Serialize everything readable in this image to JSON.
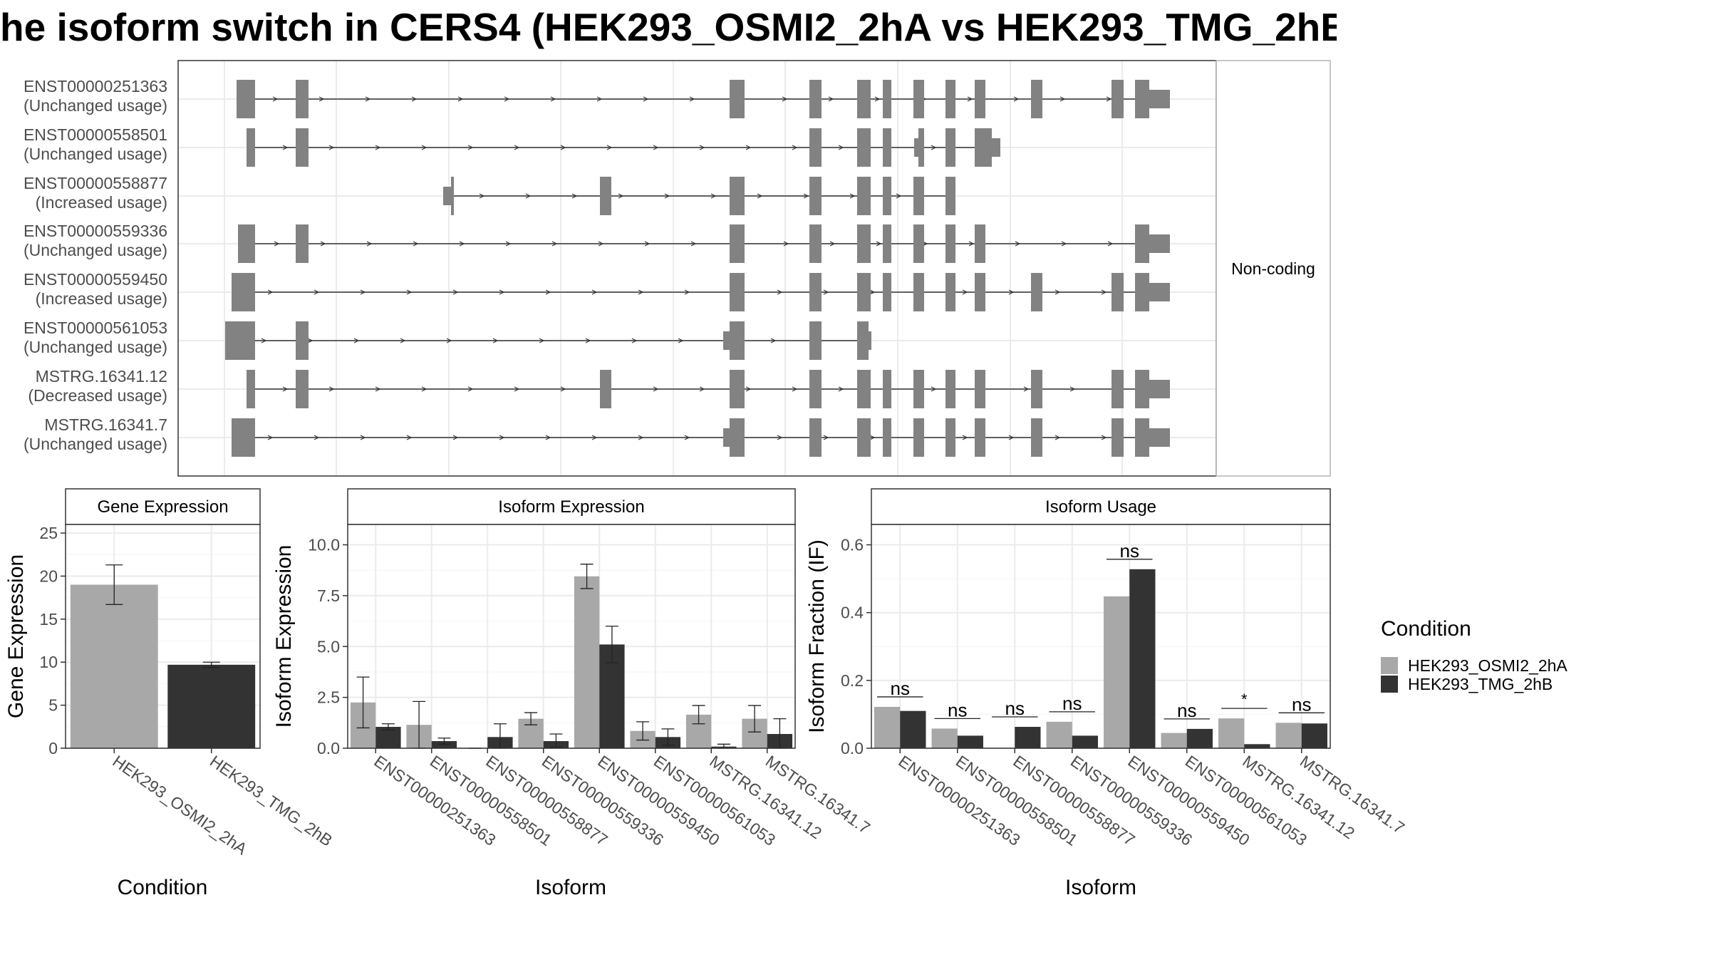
{
  "title": "he isoform switch in CERS4 (HEK293_OSMI2_2hA vs HEK293_TMG_2hB",
  "colors": {
    "light": "#a8a8a8",
    "dark": "#333333",
    "exon": "#828282",
    "grid": "#ebebeb",
    "border": "#333333"
  },
  "structure_panel": {
    "facet_label": "Non-coding",
    "isoforms": [
      {
        "id": "ENST00000251363",
        "usage": "(Unchanged usage)"
      },
      {
        "id": "ENST00000558501",
        "usage": "(Unchanged usage)"
      },
      {
        "id": "ENST00000558877",
        "usage": "(Increased usage)"
      },
      {
        "id": "ENST00000559336",
        "usage": "(Unchanged usage)"
      },
      {
        "id": "ENST00000559450",
        "usage": "(Increased usage)"
      },
      {
        "id": "ENST00000561053",
        "usage": "(Unchanged usage)"
      },
      {
        "id": "MSTRG.16341.12",
        "usage": "(Decreased usage)"
      },
      {
        "id": "MSTRG.16341.7",
        "usage": "(Unchanged usage)"
      }
    ]
  },
  "legend": {
    "title": "Condition",
    "items": [
      {
        "label": "HEK293_OSMI2_2hA",
        "color": "#a8a8a8"
      },
      {
        "label": "HEK293_TMG_2hB",
        "color": "#333333"
      }
    ]
  },
  "chart_data": [
    {
      "type": "bar",
      "title": "Gene Expression",
      "xlabel": "Condition",
      "ylabel": "Gene Expression",
      "ylim": [
        0,
        26
      ],
      "yticks": [
        0,
        5,
        10,
        15,
        20,
        25
      ],
      "ytick_labels": [
        "0",
        "5",
        "10",
        "15",
        "20",
        "25"
      ],
      "categories": [
        "HEK293_OSMI2_2hA",
        "HEK293_TMG_2hB"
      ],
      "values": [
        19.0,
        9.7
      ],
      "error_low": [
        16.7,
        9.4
      ],
      "error_high": [
        21.3,
        10.0
      ]
    },
    {
      "type": "bar",
      "title": "Isoform Expression",
      "xlabel": "Isoform",
      "ylabel": "Isoform Expression",
      "ylim": [
        0,
        11
      ],
      "yticks": [
        0,
        2.5,
        5,
        7.5,
        10
      ],
      "ytick_labels": [
        "0.0",
        "2.5",
        "5.0",
        "7.5",
        "10.0"
      ],
      "categories": [
        "ENST00000251363",
        "ENST00000558501",
        "ENST00000558877",
        "ENST00000559336",
        "ENST00000559450",
        "ENST00000561053",
        "MSTRG.16341.12",
        "MSTRG.16341.7"
      ],
      "series": [
        {
          "name": "HEK293_OSMI2_2hA",
          "values": [
            2.25,
            1.15,
            0.0,
            1.45,
            8.45,
            0.85,
            1.65,
            1.45
          ],
          "error_low": [
            1.0,
            0.0,
            0.0,
            1.15,
            7.85,
            0.4,
            1.2,
            0.8
          ],
          "error_high": [
            3.5,
            2.3,
            0.0,
            1.75,
            9.05,
            1.3,
            2.1,
            2.1
          ]
        },
        {
          "name": "HEK293_TMG_2hB",
          "values": [
            1.05,
            0.35,
            0.55,
            0.35,
            5.1,
            0.55,
            0.08,
            0.7
          ],
          "error_low": [
            0.9,
            0.2,
            0.0,
            0.05,
            4.2,
            0.15,
            0.0,
            0.0
          ],
          "error_high": [
            1.2,
            0.5,
            1.2,
            0.7,
            6.0,
            0.95,
            0.2,
            1.45
          ]
        }
      ]
    },
    {
      "type": "bar",
      "title": "Isoform Usage",
      "xlabel": "Isoform",
      "ylabel": "Isoform Fraction (IF)",
      "ylim": [
        0,
        0.66
      ],
      "yticks": [
        0,
        0.2,
        0.4,
        0.6
      ],
      "ytick_labels": [
        "0.0",
        "0.2",
        "0.4",
        "0.6"
      ],
      "categories": [
        "ENST00000251363",
        "ENST00000558501",
        "ENST00000558877",
        "ENST00000559336",
        "ENST00000559450",
        "ENST00000561053",
        "MSTRG.16341.12",
        "MSTRG.16341.7"
      ],
      "series": [
        {
          "name": "HEK293_OSMI2_2hA",
          "values": [
            0.122,
            0.058,
            0.0,
            0.078,
            0.448,
            0.045,
            0.088,
            0.075
          ]
        },
        {
          "name": "HEK293_TMG_2hB",
          "values": [
            0.11,
            0.037,
            0.063,
            0.037,
            0.528,
            0.057,
            0.012,
            0.073
          ]
        }
      ],
      "significance": [
        "ns",
        "ns",
        "ns",
        "ns",
        "ns",
        "ns",
        "*",
        "ns"
      ]
    }
  ]
}
